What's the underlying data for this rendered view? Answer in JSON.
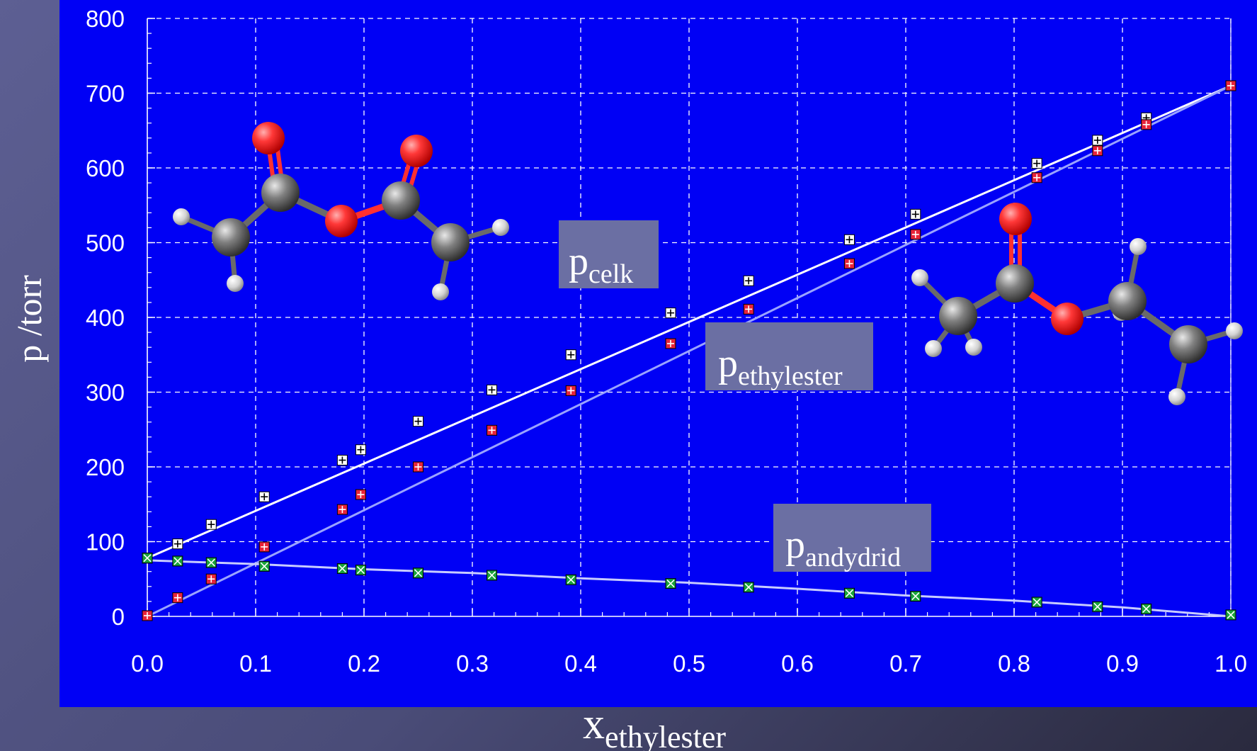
{
  "chart_data": {
    "type": "scatter",
    "xlabel": {
      "main": "x",
      "sub": "ethylester"
    },
    "ylabel": "p /torr",
    "xlim": [
      0,
      1
    ],
    "ylim": [
      0,
      800
    ],
    "xticks": [
      "0.0",
      "0.1",
      "0.2",
      "0.3",
      "0.4",
      "0.5",
      "0.6",
      "0.7",
      "0.8",
      "0.9",
      "1.0"
    ],
    "yticks": [
      "0",
      "100",
      "200",
      "300",
      "400",
      "500",
      "600",
      "700",
      "800"
    ],
    "grid": true,
    "colors": {
      "plot_bg": "#0000f5",
      "grid": "#ffffff",
      "label_box": "#6b6fa3"
    },
    "series": [
      {
        "name": "p",
        "sub": "celk",
        "marker": "plus-square",
        "color": "#ffffff",
        "fit_color": "#ffffff",
        "points": [
          [
            0.0,
            78
          ],
          [
            0.028,
            97
          ],
          [
            0.059,
            123
          ],
          [
            0.108,
            160
          ],
          [
            0.18,
            209
          ],
          [
            0.197,
            223
          ],
          [
            0.25,
            261
          ],
          [
            0.318,
            303
          ],
          [
            0.391,
            350
          ],
          [
            0.483,
            406
          ],
          [
            0.555,
            449
          ],
          [
            0.648,
            504
          ],
          [
            0.709,
            538
          ],
          [
            0.821,
            606
          ],
          [
            0.877,
            637
          ],
          [
            0.922,
            667
          ],
          [
            1.0,
            710
          ]
        ],
        "fit": [
          [
            0.0,
            78
          ],
          [
            1.0,
            710
          ]
        ]
      },
      {
        "name": "p",
        "sub": "ethylester",
        "marker": "plus-square",
        "color": "#e8243a",
        "fit_color": "#9aa3ff",
        "points": [
          [
            0.0,
            1
          ],
          [
            0.028,
            25
          ],
          [
            0.059,
            50
          ],
          [
            0.108,
            93
          ],
          [
            0.18,
            143
          ],
          [
            0.197,
            163
          ],
          [
            0.25,
            200
          ],
          [
            0.318,
            249
          ],
          [
            0.391,
            302
          ],
          [
            0.483,
            365
          ],
          [
            0.555,
            411
          ],
          [
            0.648,
            472
          ],
          [
            0.709,
            511
          ],
          [
            0.821,
            587
          ],
          [
            0.877,
            623
          ],
          [
            0.922,
            658
          ],
          [
            1.0,
            710
          ]
        ],
        "fit": [
          [
            0.0,
            0
          ],
          [
            1.0,
            710
          ]
        ]
      },
      {
        "name": "p",
        "sub": "andydrid",
        "marker": "x-square",
        "color": "#1aa33a",
        "fit_color": "#c8ccff",
        "points": [
          [
            0.0,
            78
          ],
          [
            0.028,
            74
          ],
          [
            0.059,
            72
          ],
          [
            0.108,
            67
          ],
          [
            0.18,
            64
          ],
          [
            0.197,
            62
          ],
          [
            0.25,
            58
          ],
          [
            0.318,
            55
          ],
          [
            0.391,
            49
          ],
          [
            0.483,
            44
          ],
          [
            0.555,
            39
          ],
          [
            0.648,
            31
          ],
          [
            0.709,
            27
          ],
          [
            0.821,
            19
          ],
          [
            0.877,
            13
          ],
          [
            0.922,
            10
          ],
          [
            1.0,
            2
          ]
        ],
        "fit": [
          [
            0.0,
            75
          ],
          [
            0.1,
            70
          ],
          [
            0.2,
            63
          ],
          [
            0.3,
            58
          ],
          [
            0.4,
            51
          ],
          [
            0.5,
            45
          ],
          [
            0.6,
            37
          ],
          [
            0.7,
            28
          ],
          [
            0.8,
            21
          ],
          [
            0.9,
            12
          ],
          [
            1.0,
            0
          ]
        ]
      }
    ],
    "molecules": [
      {
        "name": "acetic-anhydride"
      },
      {
        "name": "ethyl-acetate"
      }
    ]
  }
}
